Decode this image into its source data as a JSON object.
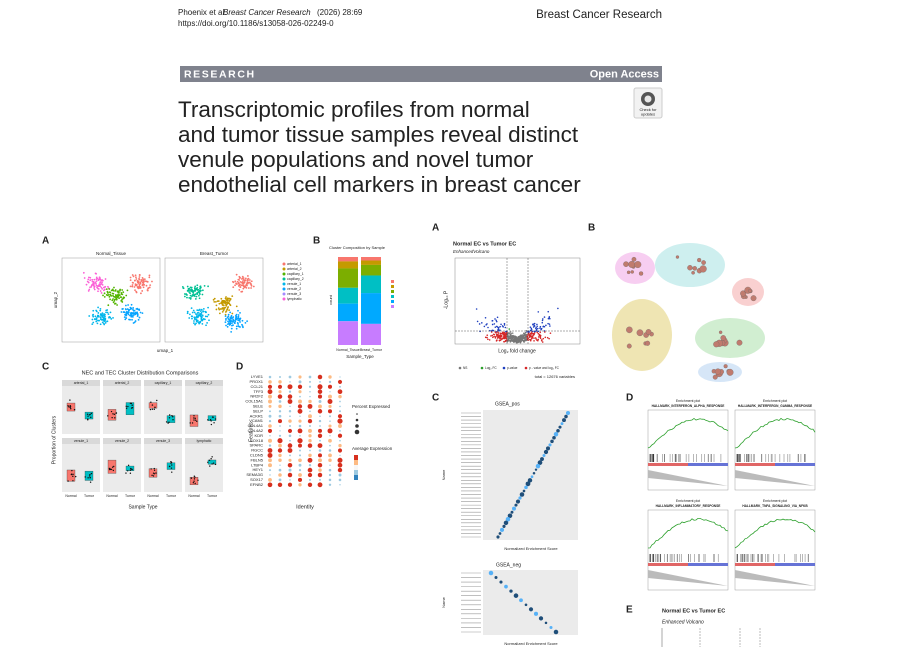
{
  "header": {
    "authors": "Phoenix et al.",
    "journal_italic": "Breast Cancer Research",
    "year_volume": "(2026) 28:69",
    "doi": "https://doi.org/10.1186/s13058-026-02249-0",
    "journal": "Breast Cancer Research"
  },
  "banner": {
    "section": "RESEARCH",
    "access": "Open Access"
  },
  "badge": {
    "lines": [
      "Check for",
      "updates"
    ]
  },
  "title_lines": [
    "Transcriptomic profiles from normal",
    "and tumor tissue samples reveal distinct",
    "venule populations and novel tumor",
    "endothelial cell markers in breast cancer"
  ],
  "figure_1": {
    "panel_a": {
      "label": "A",
      "left_title": "Normal_Tissue",
      "right_title": "Breast_Tumor",
      "x_label": "umap_1",
      "y_label": "umap_2",
      "legend": [
        "arterial_1",
        "arterial_2",
        "capillary_1",
        "capillary_2",
        "venule_1",
        "venule_2",
        "venule_3",
        "lymphatic"
      ]
    },
    "panel_b": {
      "label": "B",
      "title": "Cluster Composition by Sample",
      "x_label": "Sample_Type",
      "y_label": "count",
      "categories": [
        "Normal_Tissue",
        "Breast_Tumor"
      ]
    },
    "panel_c": {
      "label": "C",
      "title": "NEC and TEC Cluster Distribution Comparisons",
      "x_label": "Sample Type",
      "y_label": "Proportion of Clusters",
      "facets": [
        "arterial_1",
        "arterial_2",
        "capillary_1",
        "capillary_2",
        "venule_1",
        "venule_2",
        "venule_3",
        "lymphatic"
      ],
      "groups": [
        "Normal",
        "Tumor"
      ]
    },
    "panel_d": {
      "label": "D",
      "x_label": "Identity",
      "y_label": "Features",
      "legend_size": "Percent Expressed",
      "legend_color": "Average Expression",
      "features": [
        "LYVE1",
        "PROX1",
        "CCL21",
        "TFF3",
        "NR2F2",
        "COL15A1",
        "SELE",
        "SELP",
        "ACKR1",
        "VCAM1",
        "COL4A1",
        "COL4A2",
        "KDR",
        "SOX18",
        "SPARC",
        "RGCC",
        "CLDN5",
        "FBLN5",
        "LTBP4",
        "HEY1",
        "SEMA3G",
        "SOX17",
        "EFNB2"
      ]
    }
  },
  "figure_2": {
    "panel_a": {
      "label": "A",
      "title": "Normal EC vs Tumor EC",
      "subtitle": "EnhancedVolcano",
      "x_label": "Log₂ fold change",
      "y_label": "-Log₁₀ P",
      "legend": [
        "NS",
        "Log₂ FC",
        "p-value",
        "p - value and log₂ FC"
      ],
      "caption": "total = 12676 variables"
    },
    "panel_b": {
      "label": "B"
    },
    "panel_c": {
      "label": "C",
      "top_title": "GSEA_pos",
      "bottom_title": "GSEA_neg",
      "x_label": "Normalized Enrichment Score",
      "y_label": "Name"
    },
    "panel_d": {
      "label": "D",
      "plot_title": "Enrichment plot",
      "gene_sets": [
        "HALLMARK_INTERFERON_ALPHA_RESPONSE",
        "HALLMARK_INTERFERON_GAMMA_RESPONSE",
        "HALLMARK_INFLAMMATORY_RESPONSE",
        "HALLMARK_TNFA_SIGNALING_VIA_NFKB"
      ]
    },
    "panel_e": {
      "label": "E",
      "title": "Normal EC vs Tumor EC",
      "subtitle": "Enhanced Volcano"
    }
  }
}
